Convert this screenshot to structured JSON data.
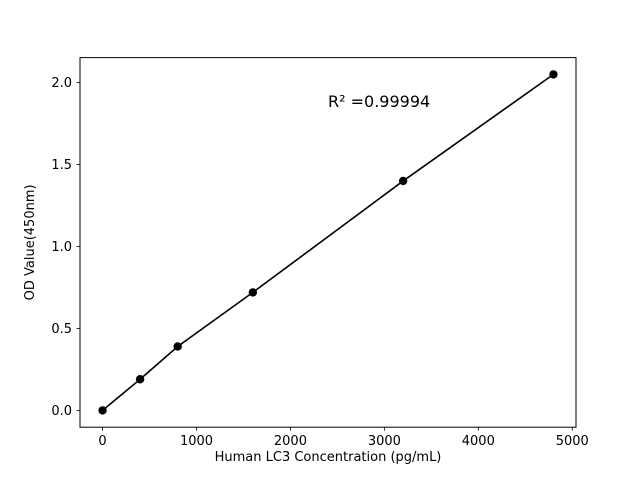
{
  "figure": {
    "background": "#ffffff",
    "foreground": "#000000"
  },
  "chart_data": {
    "type": "line",
    "x": [
      0,
      400,
      800,
      1600,
      3200,
      4800
    ],
    "y": [
      0.0,
      0.19,
      0.39,
      0.72,
      1.4,
      2.05
    ],
    "title": "",
    "xlabel": "Human LC3 Concentration (pg/mL)",
    "ylabel": "OD Value(450nm)",
    "xlim": [
      -240,
      5040
    ],
    "ylim": [
      -0.1025,
      2.1525
    ],
    "x_ticks": [
      0,
      1000,
      2000,
      3000,
      4000,
      5000
    ],
    "x_tick_labels": [
      "0",
      "1000",
      "2000",
      "3000",
      "4000",
      "5000"
    ],
    "y_ticks": [
      0.0,
      0.5,
      1.0,
      1.5,
      2.0
    ],
    "y_tick_labels": [
      "0.0",
      "0.5",
      "1.0",
      "1.5",
      "2.0"
    ],
    "grid": false,
    "legend_position": "none",
    "marker": "circle",
    "line_color": "#000000",
    "marker_color": "#000000",
    "annotation": {
      "text": "R² =0.99994",
      "x": 2400,
      "y": 1.85
    }
  }
}
